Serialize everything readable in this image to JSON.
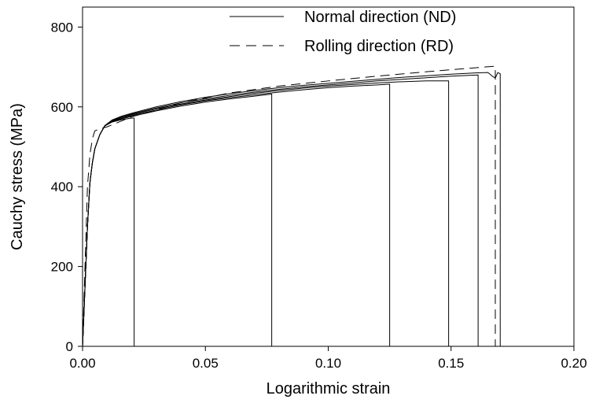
{
  "chart_data": {
    "type": "line",
    "title": "",
    "xlabel": "Logarithmic strain",
    "ylabel": "Cauchy stress (MPa)",
    "xlim": [
      0,
      0.2
    ],
    "ylim": [
      0,
      850
    ],
    "xticks": [
      0.0,
      0.05,
      0.1,
      0.15,
      0.2
    ],
    "xtick_labels": [
      "0.00",
      "0.05",
      "0.10",
      "0.15",
      "0.20"
    ],
    "yticks": [
      0,
      200,
      400,
      600,
      800
    ],
    "ytick_labels": [
      "0",
      "200",
      "400",
      "600",
      "800"
    ],
    "grid": false,
    "legend_position": "top-right",
    "legend": [
      {
        "label": "Normal direction (ND)",
        "style": "solid"
      },
      {
        "label": "Rolling direction (RD)",
        "style": "dashed"
      }
    ],
    "series": [
      {
        "style": "solid",
        "x": [
          0.0,
          0.001,
          0.002,
          0.003,
          0.004,
          0.005,
          0.007,
          0.009,
          0.012,
          0.016,
          0.02,
          0.021,
          0.021
        ],
        "y": [
          0,
          150,
          300,
          410,
          460,
          495,
          530,
          552,
          562,
          568,
          572,
          572,
          0
        ]
      },
      {
        "style": "solid",
        "x": [
          0.0,
          0.001,
          0.002,
          0.003,
          0.004,
          0.005,
          0.007,
          0.009,
          0.012,
          0.016,
          0.02,
          0.03,
          0.04,
          0.05,
          0.06,
          0.07,
          0.077,
          0.077
        ],
        "y": [
          0,
          150,
          300,
          410,
          460,
          495,
          530,
          552,
          563,
          570,
          576,
          590,
          602,
          612,
          620,
          627,
          632,
          0
        ]
      },
      {
        "style": "solid",
        "x": [
          0.0,
          0.001,
          0.002,
          0.003,
          0.004,
          0.005,
          0.007,
          0.009,
          0.012,
          0.016,
          0.02,
          0.03,
          0.04,
          0.05,
          0.06,
          0.07,
          0.08,
          0.09,
          0.1,
          0.11,
          0.12,
          0.125,
          0.125
        ],
        "y": [
          0,
          150,
          300,
          410,
          460,
          495,
          530,
          552,
          564,
          572,
          578,
          592,
          605,
          615,
          623,
          630,
          637,
          643,
          648,
          652,
          655,
          657,
          0
        ]
      },
      {
        "style": "solid",
        "x": [
          0.0,
          0.001,
          0.002,
          0.003,
          0.004,
          0.005,
          0.007,
          0.009,
          0.012,
          0.016,
          0.02,
          0.03,
          0.04,
          0.05,
          0.06,
          0.07,
          0.08,
          0.09,
          0.1,
          0.11,
          0.12,
          0.13,
          0.14,
          0.149,
          0.149
        ],
        "y": [
          0,
          150,
          300,
          410,
          460,
          495,
          530,
          552,
          565,
          574,
          580,
          595,
          607,
          617,
          626,
          634,
          641,
          647,
          652,
          656,
          660,
          663,
          665,
          665,
          0
        ]
      },
      {
        "style": "solid",
        "x": [
          0.0,
          0.001,
          0.002,
          0.003,
          0.004,
          0.005,
          0.007,
          0.009,
          0.012,
          0.016,
          0.02,
          0.03,
          0.04,
          0.05,
          0.06,
          0.07,
          0.08,
          0.09,
          0.1,
          0.11,
          0.12,
          0.13,
          0.14,
          0.15,
          0.161,
          0.161
        ],
        "y": [
          0,
          150,
          300,
          410,
          460,
          495,
          530,
          552,
          566,
          575,
          582,
          597,
          610,
          620,
          629,
          637,
          644,
          650,
          655,
          660,
          665,
          669,
          673,
          677,
          680,
          0
        ]
      },
      {
        "style": "solid",
        "x": [
          0.0,
          0.001,
          0.002,
          0.003,
          0.004,
          0.005,
          0.007,
          0.009,
          0.012,
          0.016,
          0.02,
          0.03,
          0.04,
          0.05,
          0.06,
          0.07,
          0.08,
          0.09,
          0.1,
          0.11,
          0.12,
          0.13,
          0.14,
          0.15,
          0.16,
          0.165,
          0.167,
          0.168,
          0.169,
          0.17,
          0.17
        ],
        "y": [
          0,
          150,
          300,
          410,
          460,
          495,
          530,
          553,
          567,
          577,
          584,
          600,
          613,
          624,
          633,
          641,
          648,
          654,
          659,
          664,
          669,
          674,
          678,
          682,
          685,
          686,
          676,
          672,
          686,
          683,
          0
        ]
      },
      {
        "style": "dashed",
        "x": [
          0.0,
          0.001,
          0.002,
          0.003,
          0.004,
          0.005,
          0.007,
          0.01,
          0.02,
          0.04,
          0.06,
          0.08,
          0.1,
          0.12,
          0.14,
          0.16,
          0.168,
          0.168
        ],
        "y": [
          0,
          200,
          400,
          480,
          520,
          540,
          545,
          550,
          575,
          610,
          635,
          652,
          665,
          677,
          688,
          698,
          702,
          0
        ]
      }
    ]
  }
}
